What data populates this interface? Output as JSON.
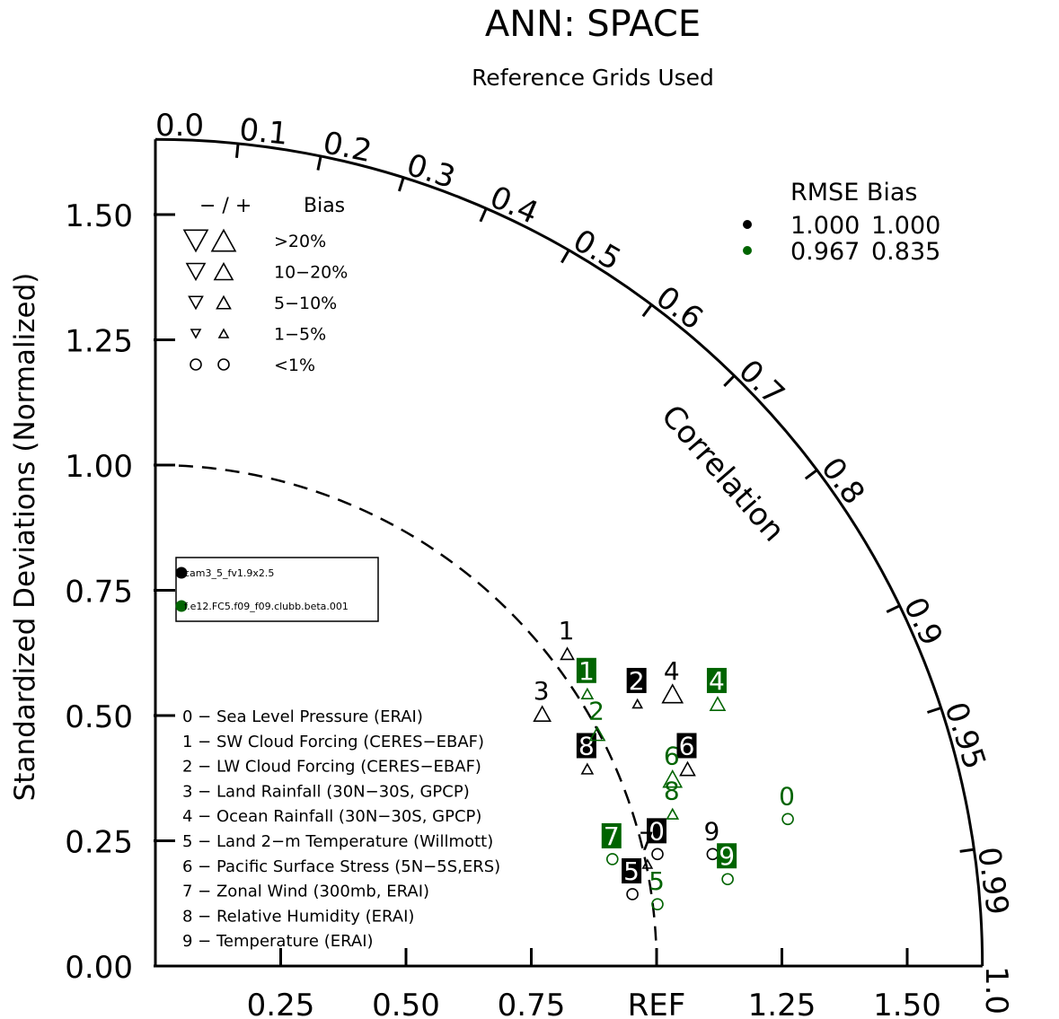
{
  "chart_data": {
    "type": "scatter",
    "subtype": "taylor-diagram",
    "title": "ANN: SPACE",
    "subtitle": "Reference Grids Used",
    "ylabel": "Standardized Deviations (Normalized)",
    "arc_label": "Correlation",
    "x_tick_labels": [
      "0.25",
      "0.50",
      "0.75",
      "REF",
      "1.25",
      "1.50"
    ],
    "x_tick_values": [
      0.25,
      0.5,
      0.75,
      1.0,
      1.25,
      1.5
    ],
    "y_tick_labels": [
      "0.00",
      "0.25",
      "0.50",
      "0.75",
      "1.00",
      "1.25",
      "1.50"
    ],
    "y_tick_values": [
      0,
      0.25,
      0.5,
      0.75,
      1.0,
      1.25,
      1.5
    ],
    "std_max": 1.65,
    "correlation_ticks": [
      {
        "label": "0.0",
        "value": 0.0
      },
      {
        "label": "0.1",
        "value": 0.1
      },
      {
        "label": "0.2",
        "value": 0.2
      },
      {
        "label": "0.3",
        "value": 0.3
      },
      {
        "label": "0.4",
        "value": 0.4
      },
      {
        "label": "0.5",
        "value": 0.5
      },
      {
        "label": "0.6",
        "value": 0.6
      },
      {
        "label": "0.7",
        "value": 0.7
      },
      {
        "label": "0.8",
        "value": 0.8
      },
      {
        "label": "0.9",
        "value": 0.9
      },
      {
        "label": "0.95",
        "value": 0.95
      },
      {
        "label": "0.99",
        "value": 0.99
      },
      {
        "label": "1.0",
        "value": 1.0
      }
    ],
    "reference_arc_std": 1.0,
    "bias_legend": {
      "header_sign": "− / +",
      "header_bias": "Bias",
      "rows": [
        {
          "label": ">20%",
          "symbol": "triangle",
          "size": 13
        },
        {
          "label": "10−20%",
          "symbol": "triangle",
          "size": 10
        },
        {
          "label": "5−10%",
          "symbol": "triangle",
          "size": 7.5
        },
        {
          "label": "1−5%",
          "symbol": "triangle",
          "size": 5
        },
        {
          "label": "<1%",
          "symbol": "circle",
          "size": 6
        }
      ]
    },
    "rmse_bias_table": {
      "header": "RMSE  Bias",
      "rows": [
        {
          "color": "#000000",
          "rmse": "1.000",
          "bias": "1.000"
        },
        {
          "color": "#006400",
          "rmse": "0.967",
          "bias": "0.835"
        }
      ]
    },
    "case_legend": [
      {
        "name": "cam3_5_fv1.9x2.5",
        "color": "#000000"
      },
      {
        "name": "f.e12.FC5.f09_f09.clubb.beta.001",
        "color": "#006400"
      }
    ],
    "variable_legend": [
      "0 − Sea Level Pressure (ERAI)",
      "1 − SW Cloud Forcing (CERES−EBAF)",
      "2 − LW Cloud Forcing (CERES−EBAF)",
      "3 − Land Rainfall (30N−30S, GPCP)",
      "4 − Ocean Rainfall (30N−30S, GPCP)",
      "5 − Land 2−m Temperature (Willmott)",
      "6 − Pacific Surface Stress (5N−5S,ERS)",
      "7 − Zonal Wind (300mb, ERAI)",
      "8 − Relative Humidity (ERAI)",
      "9 − Temperature (ERAI)"
    ],
    "series": [
      {
        "name": "cam3_5_fv1.9x2.5",
        "color": "#000000",
        "points": [
          {
            "label": "0",
            "x": 1.0,
            "y": 0.27,
            "box": true,
            "symbol": "circle",
            "size": 6,
            "dir": "up"
          },
          {
            "label": "1",
            "x": 0.82,
            "y": 0.67,
            "box": false,
            "symbol": "triangle",
            "size": 7,
            "dir": "up"
          },
          {
            "label": "2",
            "x": 0.96,
            "y": 0.57,
            "box": true,
            "symbol": "triangle",
            "size": 5,
            "dir": "up"
          },
          {
            "label": "3",
            "x": 0.77,
            "y": 0.55,
            "box": false,
            "symbol": "triangle",
            "size": 9,
            "dir": "up"
          },
          {
            "label": "4",
            "x": 1.03,
            "y": 0.59,
            "box": false,
            "symbol": "triangle",
            "size": 11,
            "dir": "up"
          },
          {
            "label": "5",
            "x": 0.95,
            "y": 0.19,
            "box": true,
            "symbol": "circle",
            "size": 6,
            "dir": "up"
          },
          {
            "label": "6",
            "x": 1.06,
            "y": 0.44,
            "box": true,
            "symbol": "triangle",
            "size": 8,
            "dir": "up"
          },
          {
            "label": "7",
            "x": 0.98,
            "y": 0.25,
            "box": false,
            "symbol": "triangle",
            "size": 5,
            "dir": "up"
          },
          {
            "label": "8",
            "x": 0.86,
            "y": 0.44,
            "box": true,
            "symbol": "triangle",
            "size": 6,
            "dir": "up"
          },
          {
            "label": "9",
            "x": 1.11,
            "y": 0.27,
            "box": false,
            "symbol": "circle",
            "size": 6,
            "dir": "up"
          }
        ]
      },
      {
        "name": "f.e12.FC5.f09_f09.clubb.beta.001",
        "color": "#006400",
        "points": [
          {
            "label": "0",
            "x": 1.26,
            "y": 0.34,
            "box": false,
            "symbol": "circle",
            "size": 6,
            "dir": "up"
          },
          {
            "label": "1",
            "x": 0.86,
            "y": 0.59,
            "box": true,
            "symbol": "triangle",
            "size": 6,
            "dir": "up"
          },
          {
            "label": "2",
            "x": 0.88,
            "y": 0.51,
            "box": false,
            "symbol": "triangle",
            "size": 8,
            "dir": "up"
          },
          {
            "label": "4",
            "x": 1.12,
            "y": 0.57,
            "box": true,
            "symbol": "triangle",
            "size": 8,
            "dir": "up"
          },
          {
            "label": "5",
            "x": 1.0,
            "y": 0.17,
            "box": false,
            "symbol": "circle",
            "size": 6,
            "dir": "up"
          },
          {
            "label": "6",
            "x": 1.03,
            "y": 0.42,
            "box": false,
            "symbol": "triangle",
            "size": 10,
            "dir": "up"
          },
          {
            "label": "7",
            "x": 0.91,
            "y": 0.26,
            "box": true,
            "symbol": "circle",
            "size": 6,
            "dir": "up"
          },
          {
            "label": "8",
            "x": 1.03,
            "y": 0.35,
            "box": false,
            "symbol": "triangle",
            "size": 6,
            "dir": "up"
          },
          {
            "label": "9",
            "x": 1.14,
            "y": 0.22,
            "box": true,
            "symbol": "circle",
            "size": 6,
            "dir": "up"
          }
        ]
      }
    ]
  }
}
